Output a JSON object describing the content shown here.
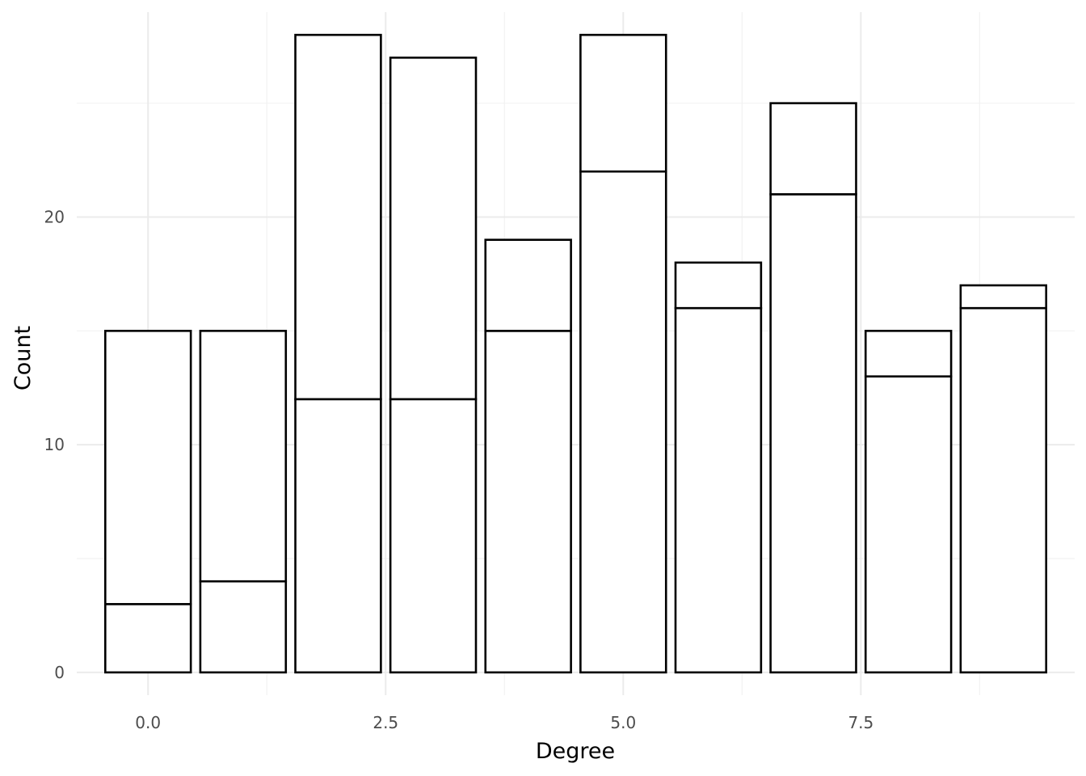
{
  "chart_data": {
    "type": "bar",
    "stacked": true,
    "xlabel": "Degree",
    "ylabel": "Count",
    "x": [
      0,
      1,
      2,
      3,
      4,
      5,
      6,
      7,
      8,
      9
    ],
    "series": [
      {
        "values": [
          3,
          4,
          12,
          12,
          15,
          22,
          16,
          21,
          13,
          16
        ]
      },
      {
        "values": [
          12,
          11,
          16,
          15,
          4,
          6,
          2,
          4,
          2,
          1
        ]
      }
    ],
    "totals": [
      15,
      15,
      28,
      27,
      19,
      28,
      18,
      25,
      15,
      17
    ],
    "xlim": [
      -0.75,
      9.75
    ],
    "ylim": [
      -1,
      29
    ],
    "x_ticks": [
      0,
      2.5,
      5,
      7.5
    ],
    "x_tick_labels": [
      "0.0",
      "2.5",
      "5.0",
      "7.5"
    ],
    "y_ticks": [
      0,
      10,
      20
    ],
    "y_tick_labels": [
      "0",
      "10",
      "20"
    ],
    "grid": true,
    "legend": "none",
    "colors": {
      "bar_fill": "#ffffff",
      "bar_stroke": "#000000",
      "grid": "#ebebeb",
      "background": "#ffffff"
    }
  }
}
